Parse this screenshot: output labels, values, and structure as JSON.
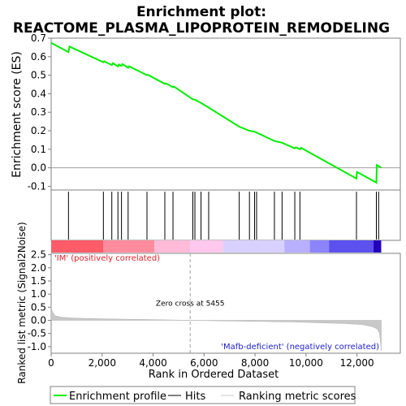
{
  "chart_data": {
    "type": "line",
    "title_line1": "Enrichment plot:",
    "title_line2": "REACTOME_PLASMA_LIPOPROTEIN_REMODELING",
    "es_panel": {
      "ylabel": "Enrichment score (ES)",
      "ylim": [
        -0.12,
        0.7
      ],
      "yticks": [
        -0.1,
        0.0,
        0.1,
        0.2,
        0.3,
        0.4,
        0.5,
        0.6,
        0.7
      ],
      "ytick_labels": [
        "-0.1",
        "0.0",
        "0.1",
        "0.2",
        "0.3",
        "0.4",
        "0.5",
        "0.6",
        "0.7"
      ],
      "series": [
        {
          "name": "Enrichment profile",
          "color": "#00ee00",
          "x": [
            0,
            680,
            720,
            2050,
            2080,
            2380,
            2420,
            2620,
            2660,
            2760,
            2800,
            3020,
            3060,
            3760,
            3800,
            4460,
            4500,
            4780,
            4820,
            5560,
            5640,
            5880,
            6180,
            7380,
            7780,
            7980,
            8060,
            8760,
            9060,
            9560,
            9600,
            9760,
            9800,
            11980,
            12000,
            12760,
            12780,
            12950
          ],
          "y": [
            0.675,
            0.625,
            0.655,
            0.57,
            0.575,
            0.555,
            0.565,
            0.548,
            0.558,
            0.55,
            0.56,
            0.54,
            0.548,
            0.5,
            0.502,
            0.453,
            0.456,
            0.435,
            0.438,
            0.37,
            0.368,
            0.35,
            0.325,
            0.222,
            0.2,
            0.195,
            0.19,
            0.145,
            0.135,
            0.105,
            0.11,
            0.1,
            0.108,
            -0.058,
            -0.022,
            -0.08,
            0.015,
            0.0
          ]
        }
      ]
    },
    "hits": {
      "name": "Hits",
      "positions": [
        680,
        2050,
        2380,
        2620,
        2760,
        3020,
        3760,
        4460,
        4780,
        5560,
        5640,
        5880,
        6180,
        7380,
        7780,
        7980,
        8060,
        8760,
        9060,
        9560,
        9760,
        11980,
        12760,
        12850
      ]
    },
    "color_bar": {
      "segments": [
        {
          "x0": 0,
          "x1": 2050,
          "color": "#ff5c6a"
        },
        {
          "x0": 2050,
          "x1": 4050,
          "color": "#ff8c9c"
        },
        {
          "x0": 4050,
          "x1": 5450,
          "color": "#ffbbd8"
        },
        {
          "x0": 5450,
          "x1": 6750,
          "color": "#ffc8ee"
        },
        {
          "x0": 6750,
          "x1": 9150,
          "color": "#d8d0ff"
        },
        {
          "x0": 9150,
          "x1": 10150,
          "color": "#b8b0ff"
        },
        {
          "x0": 10150,
          "x1": 10900,
          "color": "#8c84ff"
        },
        {
          "x0": 10900,
          "x1": 12650,
          "color": "#5c50ee"
        },
        {
          "x0": 12650,
          "x1": 12950,
          "color": "#2200bb"
        }
      ]
    },
    "metric_panel": {
      "ylabel": "Ranked list metric (Signal2Noise)",
      "xlabel": "Rank in Ordered Dataset",
      "ylim": [
        -1.25,
        2.55
      ],
      "yticks": [
        -1.0,
        -0.5,
        0.0,
        0.5,
        1.0,
        1.5,
        2.0,
        2.5
      ],
      "ytick_labels": [
        "-1.0",
        "-0.5",
        "0.0",
        "0.5",
        "1.0",
        "1.5",
        "2.0",
        "2.5"
      ],
      "xlim": [
        0,
        13700
      ],
      "xticks": [
        0,
        2000,
        4000,
        6000,
        8000,
        10000,
        12000
      ],
      "xtick_labels": [
        "0",
        "2,000",
        "4,000",
        "6,000",
        "8,000",
        "10,000",
        "12,000"
      ],
      "series": [
        {
          "name": "Ranking metric scores",
          "color": "#c8c8c8",
          "x": [
            0,
            40,
            150,
            400,
            800,
            1500,
            2500,
            4000,
            5455,
            6750,
            8000,
            9500,
            10500,
            11500,
            12200,
            12600,
            12800,
            12880,
            12920,
            12950
          ],
          "y": [
            0.55,
            0.35,
            0.18,
            0.12,
            0.09,
            0.07,
            0.05,
            0.03,
            0.0,
            -0.02,
            -0.04,
            -0.06,
            -0.09,
            -0.12,
            -0.16,
            -0.24,
            -0.33,
            -0.5,
            -0.8,
            -1.15
          ]
        }
      ],
      "zero_cross_label": "Zero cross at 5455",
      "zero_cross_x": 5455,
      "pos_label": "'IM' (positively correlated)",
      "neg_label": "'Mafb-deficient' (negatively correlated)"
    },
    "legend": [
      {
        "name": "Enrichment profile",
        "color": "#00ee00"
      },
      {
        "name": "Hits",
        "color": "#000000"
      },
      {
        "name": "Ranking metric scores",
        "color": "#c8c8c8"
      }
    ]
  }
}
